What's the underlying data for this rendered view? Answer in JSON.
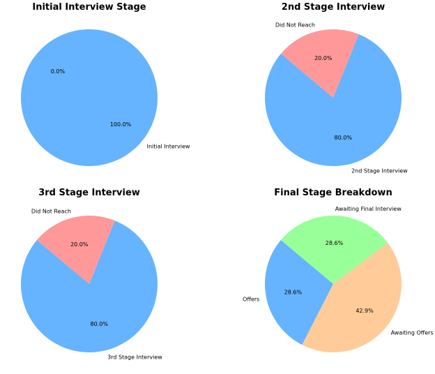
{
  "chart_data": [
    {
      "type": "pie",
      "title": "Initial Interview Stage",
      "slices": [
        {
          "label": "Initial Interview",
          "value": 100.0,
          "pct_label": "100.0%",
          "color": "#66b3ff"
        },
        {
          "label": "",
          "value": 0.0,
          "pct_label": "0.0%",
          "color": "#ff9999"
        }
      ]
    },
    {
      "type": "pie",
      "title": "2nd Stage Interview",
      "slices": [
        {
          "label": "2nd Stage Interview",
          "value": 80.0,
          "pct_label": "80.0%",
          "color": "#66b3ff"
        },
        {
          "label": "Did Not Reach",
          "value": 20.0,
          "pct_label": "20.0%",
          "color": "#ff9999"
        }
      ]
    },
    {
      "type": "pie",
      "title": "3rd Stage Interview",
      "slices": [
        {
          "label": "3rd Stage Interview",
          "value": 80.0,
          "pct_label": "80.0%",
          "color": "#66b3ff"
        },
        {
          "label": "Did Not Reach",
          "value": 20.0,
          "pct_label": "20.0%",
          "color": "#ff9999"
        }
      ]
    },
    {
      "type": "pie",
      "title": "Final Stage Breakdown",
      "slices": [
        {
          "label": "Offers",
          "value": 28.6,
          "pct_label": "28.6%",
          "color": "#66b3ff"
        },
        {
          "label": "Awaiting Offers",
          "value": 42.9,
          "pct_label": "42.9%",
          "color": "#ffcc99"
        },
        {
          "label": "Awaiting Final Interview",
          "value": 28.6,
          "pct_label": "28.6%",
          "color": "#99ff99"
        }
      ]
    }
  ]
}
